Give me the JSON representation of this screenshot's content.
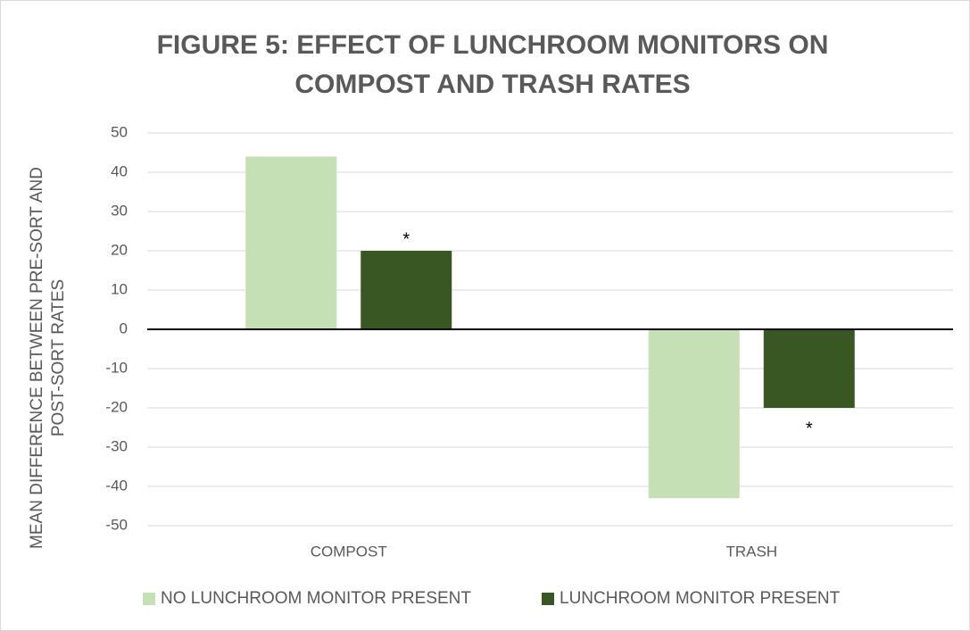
{
  "chart_data": {
    "type": "bar",
    "title": [
      "FIGURE 5: EFFECT OF LUNCHROOM MONITORS ON",
      "COMPOST AND TRASH RATES"
    ],
    "y_label": [
      "MEAN DIFFERENCE BETWEEN PRE-SORT AND",
      "POST-SORT RATES"
    ],
    "categories": [
      "COMPOST",
      "TRASH"
    ],
    "series": [
      {
        "name": "NO LUNCHROOM MONITOR PRESENT",
        "color": "#c5e0b4",
        "values": [
          44,
          -43
        ]
      },
      {
        "name": "LUNCHROOM MONITOR PRESENT",
        "color": "#385723",
        "values": [
          20,
          -20
        ]
      }
    ],
    "annotations": [
      "*",
      "*"
    ],
    "ylim": [
      -50,
      50
    ],
    "yticks": [
      50,
      40,
      30,
      20,
      10,
      0,
      -10,
      -20,
      -30,
      -40,
      -50
    ],
    "grid": true,
    "legend": "bottom"
  }
}
